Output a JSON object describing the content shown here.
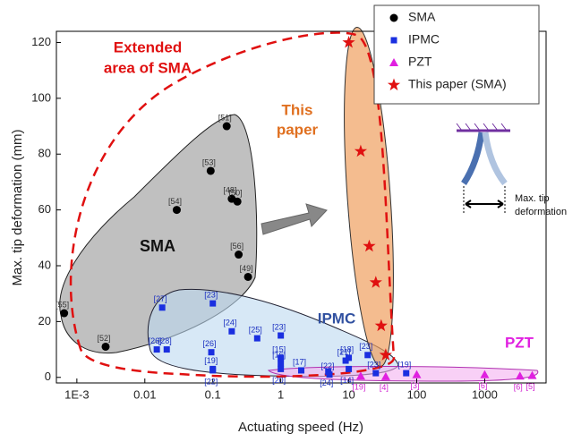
{
  "chart_data": {
    "type": "scatter",
    "x_label": "Actuating speed (Hz)",
    "y_label": "Max. tip deformation (mm)",
    "xscale": "log",
    "xlim": [
      0.0005,
      8000
    ],
    "ylim": [
      -2,
      124
    ],
    "xticks": [
      {
        "value": 0.001,
        "label": "1E-3"
      },
      0.01,
      0.1,
      1,
      10,
      100,
      1000
    ],
    "yticks": [
      0,
      20,
      40,
      60,
      80,
      100,
      120
    ],
    "legend": "upper right",
    "annotations": [
      "Extended",
      "area of SMA",
      "This",
      "paper",
      "SMA",
      "IPMC",
      "PZT",
      "Max. tip",
      "deformation"
    ],
    "series": [
      {
        "name": "SMA",
        "marker": "circle",
        "color": "#000000",
        "x": [
          0.00065,
          0.00265,
          0.0295,
          0.093,
          0.16,
          0.19,
          0.23,
          0.24,
          0.33
        ],
        "values": [
          23,
          11,
          60,
          74,
          90,
          64,
          63,
          44,
          36
        ],
        "labels": [
          "[55]",
          "[52]",
          "[54]",
          "[53]",
          "[51]",
          "[48]",
          "[50]",
          "[56]",
          "[49]"
        ]
      },
      {
        "name": "IPMC",
        "marker": "square",
        "color": "#1a2fe0",
        "x": [
          0.018,
          0.1,
          0.015,
          0.021,
          0.095,
          0.1,
          0.1,
          0.19,
          0.45,
          1,
          1,
          1,
          1,
          2,
          5,
          5.2,
          9,
          10,
          19,
          25,
          10,
          70
        ],
        "values": [
          25,
          26.5,
          10,
          10,
          9,
          3,
          2.5,
          16.5,
          14,
          15,
          5,
          7,
          3,
          2.5,
          2,
          1,
          6,
          7,
          8,
          1.5,
          3,
          1.5
        ],
        "labels": [
          "[27]",
          "[23]",
          "[26]",
          "[28]",
          "[26]",
          "[19]",
          "[22]",
          "[24]",
          "[25]",
          "[23]",
          "[16]",
          "[15]",
          "[20]",
          "[17]",
          "[24]",
          "[22]",
          "[21]",
          "[18]",
          "[23]",
          "[23]",
          "[14]",
          "[19]"
        ]
      },
      {
        "name": "PZT",
        "marker": "triangle",
        "color": "#e020e0",
        "x": [
          15,
          35,
          100,
          1000,
          3300,
          5000
        ],
        "values": [
          0.5,
          0.3,
          1,
          1,
          0.5,
          0.7
        ],
        "labels": [
          "[19]",
          "[4]",
          "[3]",
          "[6]",
          "[6]",
          "[5]"
        ]
      },
      {
        "name": "This paper (SMA)",
        "marker": "star",
        "color": "#e01010",
        "x": [
          10,
          15,
          20,
          25,
          30,
          35
        ],
        "values": [
          120,
          81,
          47,
          34,
          18.5,
          8
        ]
      }
    ]
  }
}
